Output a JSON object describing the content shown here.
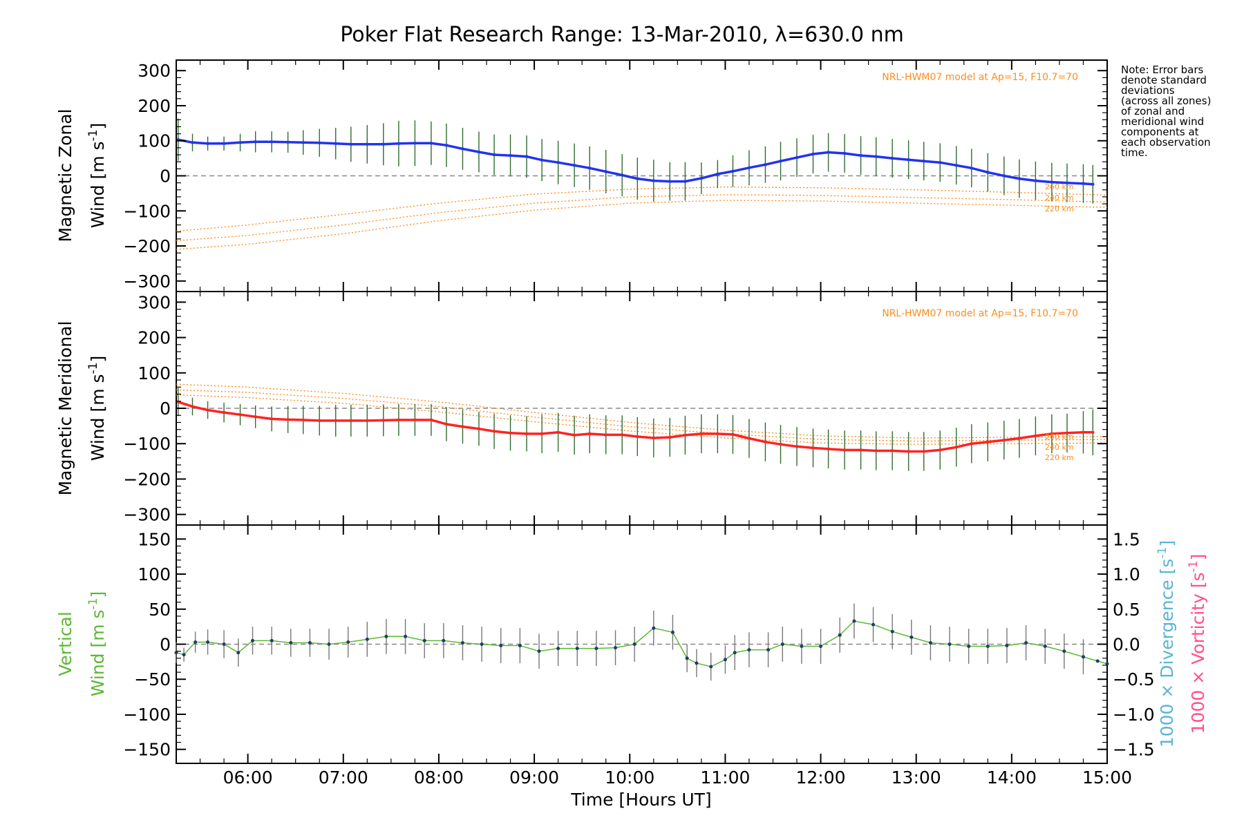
{
  "chart_data": {
    "type": "line",
    "title": "Poker Flat Research Range: 13-Mar-2010, λ=630.0 nm",
    "xlabel": "Time [Hours UT]",
    "xlim": [
      5.25,
      15.0
    ],
    "x_ticks": [
      6,
      7,
      8,
      9,
      10,
      11,
      12,
      13,
      14,
      15
    ],
    "x_tick_labels": [
      "06:00",
      "07:00",
      "08:00",
      "09:00",
      "10:00",
      "11:00",
      "12:00",
      "13:00",
      "14:00",
      "15:00"
    ],
    "note": [
      "Note: Error bars",
      "denote standard",
      "deviations",
      "(across all zones)",
      "of zonal and",
      "meridional wind",
      "components at",
      "each observation",
      "time."
    ],
    "panels": [
      {
        "id": "zonal",
        "ylabel_line1": "Magnetic Zonal",
        "ylabel_line2": "Wind [m s",
        "ylabel_sup": "-1",
        "ylabel_close": "]",
        "ylim": [
          -330,
          330
        ],
        "y_ticks": [
          300,
          200,
          100,
          0,
          -100,
          -200,
          -300
        ],
        "y_tick_labels": [
          "300",
          "200",
          "100",
          "0",
          "−100",
          "−200",
          "−300"
        ],
        "model_label": "NRL-HWM07 model at Ap=15, F10.7=70",
        "model_altitudes": [
          "260 km",
          "240 km",
          "220 km"
        ],
        "series": {
          "name": "Magnetic Zonal Wind",
          "color": "#2233ee",
          "x": [
            5.27,
            5.42,
            5.58,
            5.75,
            5.92,
            6.08,
            6.25,
            6.42,
            6.58,
            6.75,
            6.92,
            7.08,
            7.25,
            7.42,
            7.58,
            7.75,
            7.92,
            8.08,
            8.25,
            8.42,
            8.58,
            8.75,
            8.92,
            9.08,
            9.25,
            9.42,
            9.58,
            9.75,
            9.92,
            10.08,
            10.25,
            10.42,
            10.58,
            10.75,
            10.92,
            11.08,
            11.25,
            11.42,
            11.58,
            11.75,
            11.92,
            12.08,
            12.25,
            12.42,
            12.58,
            12.75,
            12.92,
            13.08,
            13.25,
            13.42,
            13.58,
            13.75,
            13.92,
            14.08,
            14.25,
            14.42,
            14.58,
            14.75,
            14.85
          ],
          "y": [
            103,
            95,
            92,
            92,
            95,
            97,
            97,
            96,
            95,
            94,
            92,
            90,
            90,
            90,
            92,
            93,
            93,
            87,
            77,
            68,
            60,
            58,
            55,
            45,
            38,
            30,
            22,
            12,
            2,
            -8,
            -14,
            -16,
            -16,
            -7,
            5,
            13,
            23,
            32,
            42,
            52,
            62,
            67,
            64,
            58,
            55,
            50,
            46,
            42,
            38,
            30,
            22,
            10,
            0,
            -8,
            -14,
            -18,
            -20,
            -22,
            -24
          ],
          "err": [
            60,
            25,
            20,
            20,
            25,
            30,
            30,
            30,
            35,
            40,
            45,
            50,
            55,
            60,
            65,
            65,
            62,
            62,
            60,
            58,
            58,
            60,
            60,
            60,
            62,
            62,
            62,
            62,
            60,
            60,
            60,
            55,
            55,
            45,
            40,
            45,
            50,
            52,
            55,
            55,
            55,
            55,
            55,
            55,
            55,
            55,
            55,
            55,
            55,
            55,
            55,
            55,
            55,
            55,
            55,
            55,
            55,
            55,
            55
          ]
        },
        "model_curves": [
          {
            "x": [
              5.25,
              6.0,
              7.0,
              8.0,
              9.0,
              10.0,
              11.0,
              12.0,
              13.0,
              14.0,
              15.0
            ],
            "y": [
              -158,
              -140,
              -110,
              -78,
              -52,
              -38,
              -32,
              -34,
              -40,
              -47,
              -55
            ]
          },
          {
            "x": [
              5.25,
              6.0,
              7.0,
              8.0,
              9.0,
              10.0,
              11.0,
              12.0,
              13.0,
              14.0,
              15.0
            ],
            "y": [
              -185,
              -170,
              -140,
              -105,
              -78,
              -60,
              -54,
              -56,
              -62,
              -68,
              -75
            ]
          },
          {
            "x": [
              5.25,
              6.0,
              7.0,
              8.0,
              9.0,
              10.0,
              11.0,
              12.0,
              13.0,
              14.0,
              15.0
            ],
            "y": [
              -210,
              -195,
              -165,
              -128,
              -98,
              -78,
              -70,
              -72,
              -78,
              -84,
              -90
            ]
          }
        ]
      },
      {
        "id": "meridional",
        "ylabel_line1": "Magnetic Meridional",
        "ylabel_line2": "Wind [m s",
        "ylabel_sup": "-1",
        "ylabel_close": "]",
        "ylim": [
          -330,
          330
        ],
        "y_ticks": [
          300,
          200,
          100,
          0,
          -100,
          -200,
          -300
        ],
        "y_tick_labels": [
          "300",
          "200",
          "100",
          "0",
          "−100",
          "−200",
          "−300"
        ],
        "model_label": "NRL-HWM07 model at Ap=15, F10.7=70",
        "model_altitudes": [
          "260 km",
          "240 km",
          "220 km"
        ],
        "series": {
          "name": "Magnetic Meridional Wind",
          "color": "#ff2222",
          "x": [
            5.27,
            5.42,
            5.58,
            5.75,
            5.92,
            6.08,
            6.25,
            6.42,
            6.58,
            6.75,
            6.92,
            7.08,
            7.25,
            7.42,
            7.58,
            7.75,
            7.92,
            8.08,
            8.25,
            8.42,
            8.58,
            8.75,
            8.92,
            9.08,
            9.25,
            9.42,
            9.58,
            9.75,
            9.92,
            10.08,
            10.25,
            10.42,
            10.58,
            10.75,
            10.92,
            11.08,
            11.25,
            11.42,
            11.58,
            11.75,
            11.92,
            12.08,
            12.25,
            12.42,
            12.58,
            12.75,
            12.92,
            13.08,
            13.25,
            13.42,
            13.58,
            13.75,
            13.92,
            14.08,
            14.25,
            14.42,
            14.58,
            14.75,
            14.85
          ],
          "y": [
            18,
            5,
            -5,
            -12,
            -18,
            -24,
            -30,
            -32,
            -33,
            -35,
            -35,
            -35,
            -35,
            -34,
            -33,
            -33,
            -33,
            -45,
            -52,
            -58,
            -65,
            -70,
            -72,
            -72,
            -68,
            -76,
            -72,
            -75,
            -75,
            -80,
            -84,
            -82,
            -76,
            -72,
            -72,
            -74,
            -85,
            -95,
            -102,
            -108,
            -112,
            -115,
            -118,
            -118,
            -120,
            -120,
            -122,
            -122,
            -118,
            -110,
            -100,
            -95,
            -90,
            -85,
            -78,
            -72,
            -70,
            -68,
            -68
          ],
          "err": [
            40,
            25,
            25,
            28,
            30,
            32,
            35,
            38,
            40,
            42,
            45,
            45,
            45,
            45,
            45,
            45,
            45,
            48,
            48,
            48,
            50,
            50,
            50,
            55,
            55,
            55,
            55,
            55,
            55,
            55,
            55,
            55,
            55,
            55,
            55,
            55,
            55,
            55,
            55,
            55,
            55,
            55,
            55,
            55,
            55,
            55,
            55,
            55,
            55,
            55,
            55,
            55,
            55,
            55,
            55,
            55,
            55,
            60,
            65
          ]
        },
        "model_curves": [
          {
            "x": [
              5.25,
              6.0,
              7.0,
              8.0,
              9.0,
              10.0,
              11.0,
              12.0,
              13.0,
              14.0,
              15.0
            ],
            "y": [
              68,
              60,
              42,
              18,
              -12,
              -40,
              -62,
              -78,
              -84,
              -82,
              -80
            ]
          },
          {
            "x": [
              5.25,
              6.0,
              7.0,
              8.0,
              9.0,
              10.0,
              11.0,
              12.0,
              13.0,
              14.0,
              15.0
            ],
            "y": [
              52,
              45,
              28,
              5,
              -25,
              -52,
              -72,
              -88,
              -93,
              -90,
              -88
            ]
          },
          {
            "x": [
              5.25,
              6.0,
              7.0,
              8.0,
              9.0,
              10.0,
              11.0,
              12.0,
              13.0,
              14.0,
              15.0
            ],
            "y": [
              38,
              30,
              14,
              -10,
              -38,
              -64,
              -84,
              -98,
              -102,
              -100,
              -98
            ]
          }
        ]
      },
      {
        "id": "vertical",
        "ylabel_line1": "Vertical",
        "ylabel_line2": "Wind [m s",
        "ylabel_sup": "-1",
        "ylabel_close": "]",
        "ylabel_color": "#5cb833",
        "ylim": [
          -170,
          170
        ],
        "y_ticks": [
          150,
          100,
          50,
          0,
          -50,
          -100,
          -150
        ],
        "y_tick_labels": [
          "150",
          "100",
          "50",
          "0",
          "−50",
          "−100",
          "−150"
        ],
        "right_ylim": [
          -1.7,
          1.7
        ],
        "right_ticks": [
          1.5,
          1.0,
          0.5,
          0.0,
          -0.5,
          -1.0,
          -1.5
        ],
        "right_tick_labels": [
          "1.5",
          "1.0",
          "0.5",
          "0.0",
          "−0.5",
          "−1.0",
          "−1.5"
        ],
        "right_label_div": "1000 × Divergence [s",
        "right_label_div_color": "#5ab4d6",
        "right_label_vort": "1000 × Vorticity [s",
        "right_label_vort_color": "#ff4f8b",
        "right_label_sup": "-1",
        "right_label_close": "]",
        "series": {
          "name": "Vertical Wind",
          "color": "#5cb833",
          "x": [
            5.25,
            5.33,
            5.45,
            5.58,
            5.75,
            5.9,
            6.05,
            6.25,
            6.45,
            6.65,
            6.85,
            7.05,
            7.25,
            7.45,
            7.65,
            7.85,
            8.05,
            8.25,
            8.45,
            8.65,
            8.85,
            9.05,
            9.25,
            9.45,
            9.65,
            9.85,
            10.05,
            10.25,
            10.45,
            10.6,
            10.7,
            10.85,
            11.0,
            11.1,
            11.25,
            11.45,
            11.6,
            11.8,
            12.0,
            12.2,
            12.35,
            12.55,
            12.75,
            12.95,
            13.15,
            13.35,
            13.55,
            13.75,
            13.95,
            14.15,
            14.35,
            14.55,
            14.75,
            14.9,
            15.0
          ],
          "y": [
            -12,
            -15,
            3,
            3,
            0,
            -12,
            5,
            5,
            2,
            2,
            0,
            3,
            7,
            11,
            11,
            5,
            5,
            2,
            0,
            -2,
            -2,
            -10,
            -6,
            -6,
            -6,
            -5,
            0,
            23,
            17,
            -20,
            -27,
            -32,
            -22,
            -12,
            -8,
            -8,
            0,
            -3,
            -3,
            13,
            33,
            28,
            18,
            10,
            2,
            0,
            -3,
            -3,
            -2,
            2,
            -3,
            -10,
            -18,
            -24,
            -28
          ],
          "err": [
            15,
            10,
            15,
            18,
            20,
            20,
            20,
            20,
            20,
            20,
            22,
            22,
            25,
            25,
            25,
            25,
            25,
            25,
            25,
            25,
            25,
            25,
            25,
            25,
            25,
            25,
            25,
            25,
            25,
            20,
            20,
            20,
            20,
            25,
            25,
            25,
            25,
            25,
            25,
            25,
            25,
            25,
            25,
            25,
            25,
            25,
            25,
            25,
            25,
            25,
            25,
            25,
            25,
            0,
            0
          ]
        }
      }
    ]
  }
}
